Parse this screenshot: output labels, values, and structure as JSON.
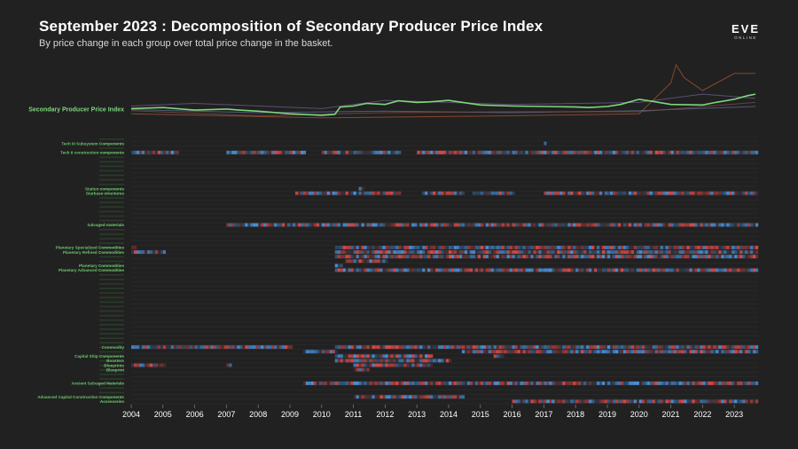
{
  "header": {
    "title": "September 2023 : Decomposition of Secondary Producer Price Index",
    "subtitle": "By price change in each group over total price change in the basket.",
    "logo_text": "EVE",
    "logo_subtext": "ONLINE"
  },
  "chart_data": {
    "type": "heatmap",
    "title": "September 2023 : Decomposition of Secondary Producer Price Index",
    "subtitle": "By price change in each group over total price change in the basket.",
    "x_ticks": [
      "2004",
      "2005",
      "2006",
      "2007",
      "2008",
      "2009",
      "2010",
      "2011",
      "2012",
      "2013",
      "2014",
      "2015",
      "2016",
      "2017",
      "2018",
      "2019",
      "2020",
      "2021",
      "2022",
      "2023"
    ],
    "x_range": [
      "2004-01",
      "2023-09"
    ],
    "index_line": {
      "name": "Secondary Producer Price Index",
      "color": "#7ed67e",
      "points": [
        [
          "2004-01",
          100
        ],
        [
          "2005-01",
          102
        ],
        [
          "2006-01",
          97
        ],
        [
          "2007-01",
          99
        ],
        [
          "2007-06",
          97
        ],
        [
          "2008-01",
          95
        ],
        [
          "2009-01",
          90
        ],
        [
          "2010-01",
          87
        ],
        [
          "2010-06",
          89
        ],
        [
          "2010-08",
          103
        ],
        [
          "2011-01",
          105
        ],
        [
          "2011-06",
          110
        ],
        [
          "2012-01",
          108
        ],
        [
          "2012-06",
          115
        ],
        [
          "2013-01",
          112
        ],
        [
          "2013-06",
          113
        ],
        [
          "2014-01",
          116
        ],
        [
          "2015-01",
          107
        ],
        [
          "2016-01",
          105
        ],
        [
          "2017-01",
          104
        ],
        [
          "2018-01",
          103
        ],
        [
          "2018-06",
          102
        ],
        [
          "2019-01",
          104
        ],
        [
          "2019-06",
          108
        ],
        [
          "2020-01",
          118
        ],
        [
          "2020-06",
          114
        ],
        [
          "2021-01",
          108
        ],
        [
          "2022-01",
          107
        ],
        [
          "2022-06",
          112
        ],
        [
          "2023-01",
          118
        ],
        [
          "2023-06",
          125
        ],
        [
          "2023-09",
          128
        ]
      ]
    },
    "background_lines": [
      {
        "color": "#a0522d",
        "points": [
          [
            "2004-01",
            90
          ],
          [
            "2010-01",
            82
          ],
          [
            "2016-01",
            86
          ],
          [
            "2020-01",
            90
          ],
          [
            "2021-01",
            150
          ],
          [
            "2021-03",
            185
          ],
          [
            "2021-06",
            160
          ],
          [
            "2022-01",
            135
          ],
          [
            "2023-01",
            168
          ],
          [
            "2023-09",
            168
          ]
        ]
      },
      {
        "color": "#6a5a8a",
        "points": [
          [
            "2004-01",
            105
          ],
          [
            "2006-01",
            110
          ],
          [
            "2010-01",
            100
          ],
          [
            "2012-01",
            116
          ],
          [
            "2016-01",
            108
          ],
          [
            "2020-01",
            112
          ],
          [
            "2022-01",
            128
          ],
          [
            "2023-09",
            120
          ]
        ]
      },
      {
        "color": "#5a6a8a",
        "points": [
          [
            "2004-01",
            98
          ],
          [
            "2008-01",
            92
          ],
          [
            "2012-01",
            95
          ],
          [
            "2016-01",
            92
          ],
          [
            "2020-01",
            96
          ],
          [
            "2023-09",
            104
          ]
        ]
      },
      {
        "color": "#7a4a4a",
        "points": [
          [
            "2004-01",
            96
          ],
          [
            "2008-01",
            86
          ],
          [
            "2012-01",
            92
          ],
          [
            "2016-01",
            94
          ],
          [
            "2020-01",
            94
          ],
          [
            "2023-09",
            112
          ]
        ]
      }
    ],
    "color_scale": {
      "increase": "#4a90d9",
      "decrease": "#d94a4a",
      "neutral": "#2a2a2a"
    },
    "highlighted_rows": [
      {
        "label": "Tech III Subsystem Components",
        "row": 1
      },
      {
        "label": "Tech II construction components",
        "row": 3
      },
      {
        "label": "Station components",
        "row": 11
      },
      {
        "label": "Starbase structures",
        "row": 12
      },
      {
        "label": "Salvaged materials",
        "row": 19
      },
      {
        "label": "Planetary Specialized Commodities",
        "row": 24
      },
      {
        "label": "Planetary Refined Commodities",
        "row": 25
      },
      {
        "label": "Planetary Commodities",
        "row": 28
      },
      {
        "label": "Planetary Advanced Commodities",
        "row": 29
      },
      {
        "label": "Commodity",
        "row": 46
      },
      {
        "label": "Capital Ship Components",
        "row": 48
      },
      {
        "label": "Boosters",
        "row": 49
      },
      {
        "label": "Blueprints",
        "row": 50
      },
      {
        "label": "Blueprint",
        "row": 51
      },
      {
        "label": "Ancient Salvaged Materials",
        "row": 54
      },
      {
        "label": "Advanced Capital Construction Components",
        "row": 57
      },
      {
        "label": "Accessories",
        "row": 58
      }
    ],
    "activity": [
      {
        "row": 1,
        "spans": [
          [
            "2017-01",
            "2017-01"
          ]
        ]
      },
      {
        "row": 3,
        "spans": [
          [
            "2004-01",
            "2005-06"
          ],
          [
            "2007-01",
            "2009-06"
          ],
          [
            "2010-01",
            "2012-06"
          ],
          [
            "2013-01",
            "2023-09"
          ]
        ]
      },
      {
        "row": 11,
        "spans": [
          [
            "2011-03",
            "2011-04"
          ]
        ]
      },
      {
        "row": 12,
        "spans": [
          [
            "2009-03",
            "2012-06"
          ],
          [
            "2013-03",
            "2014-06"
          ],
          [
            "2014-10",
            "2016-01"
          ],
          [
            "2017-01",
            "2023-09"
          ]
        ]
      },
      {
        "row": 19,
        "spans": [
          [
            "2007-01",
            "2023-09"
          ]
        ]
      },
      {
        "row": 24,
        "spans": [
          [
            "2004-01",
            "2004-02"
          ],
          [
            "2010-06",
            "2023-09"
          ]
        ]
      },
      {
        "row": 25,
        "spans": [
          [
            "2004-01",
            "2005-01"
          ],
          [
            "2010-06",
            "2023-09"
          ]
        ]
      },
      {
        "row": 26,
        "spans": [
          [
            "2010-06",
            "2023-09"
          ]
        ]
      },
      {
        "row": 27,
        "spans": [
          [
            "2010-10",
            "2012-01"
          ]
        ]
      },
      {
        "row": 28,
        "spans": [
          [
            "2010-06",
            "2010-08"
          ]
        ]
      },
      {
        "row": 29,
        "spans": [
          [
            "2010-06",
            "2023-09"
          ]
        ]
      },
      {
        "row": 46,
        "spans": [
          [
            "2004-01",
            "2009-01"
          ],
          [
            "2010-06",
            "2023-09"
          ]
        ]
      },
      {
        "row": 47,
        "spans": [
          [
            "2009-06",
            "2010-06"
          ],
          [
            "2014-06",
            "2023-09"
          ]
        ]
      },
      {
        "row": 48,
        "spans": [
          [
            "2010-06",
            "2013-06"
          ],
          [
            "2015-06",
            "2015-09"
          ]
        ]
      },
      {
        "row": 49,
        "spans": [
          [
            "2010-06",
            "2014-01"
          ]
        ]
      },
      {
        "row": 50,
        "spans": [
          [
            "2004-01",
            "2005-01"
          ],
          [
            "2007-01",
            "2007-02"
          ],
          [
            "2011-01",
            "2013-06"
          ]
        ]
      },
      {
        "row": 51,
        "spans": [
          [
            "2011-01",
            "2011-06"
          ]
        ]
      },
      {
        "row": 54,
        "spans": [
          [
            "2009-06",
            "2023-09"
          ]
        ]
      },
      {
        "row": 57,
        "spans": [
          [
            "2011-01",
            "2014-06"
          ]
        ]
      },
      {
        "row": 58,
        "spans": [
          [
            "2016-01",
            "2023-09"
          ]
        ]
      }
    ]
  }
}
